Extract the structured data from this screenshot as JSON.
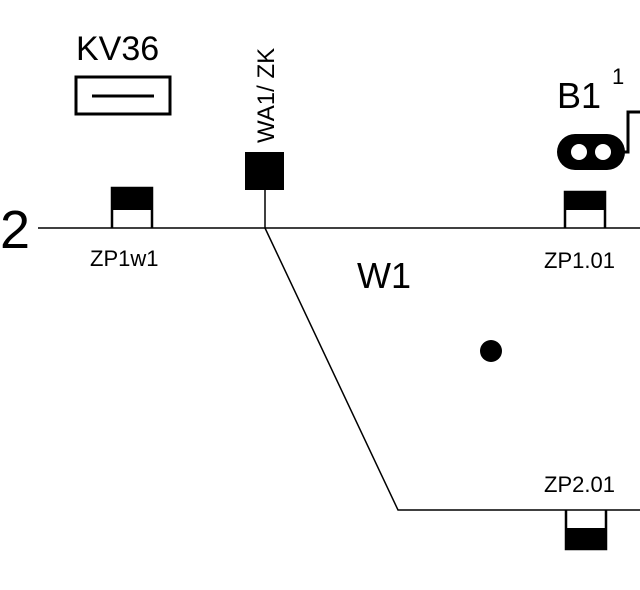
{
  "diagram": {
    "track_number": "2",
    "signal_id": "KV36",
    "junction_label": "WA1/ ZK",
    "switch_label": "W1",
    "signal_b1": {
      "name": "B1",
      "superscript": "1"
    },
    "axle_counters": [
      {
        "id": "ZP1w1"
      },
      {
        "id": "ZP1.01"
      },
      {
        "id": "ZP2.01"
      }
    ]
  },
  "colors": {
    "ink": "#000000",
    "background": "#ffffff"
  }
}
